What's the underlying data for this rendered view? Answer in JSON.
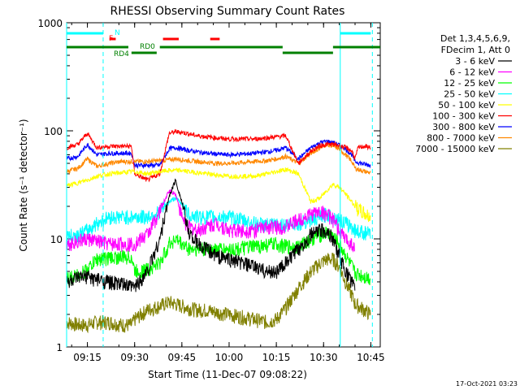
{
  "chart_data": {
    "type": "line",
    "title": "RHESSI Observing Summary Count Rates",
    "xlabel": "Start Time (11-Dec-07 09:08:22)",
    "ylabel": "Count Rate (s⁻¹ detector⁻¹)",
    "yscale": "log",
    "ylim": [
      1,
      1000
    ],
    "xlim_minutes_after_0900": [
      8.4,
      108
    ],
    "x_ticks": [
      {
        "label": "09:15",
        "minute": 15
      },
      {
        "label": "09:30",
        "minute": 30
      },
      {
        "label": "09:45",
        "minute": 45
      },
      {
        "label": "10:00",
        "minute": 60
      },
      {
        "label": "10:15",
        "minute": 75
      },
      {
        "label": "10:30",
        "minute": 90
      },
      {
        "label": "10:45",
        "minute": 105
      }
    ],
    "y_ticks": [
      {
        "label": "1",
        "value": 1
      },
      {
        "label": "10",
        "value": 10
      },
      {
        "label": "100",
        "value": 100
      },
      {
        "label": "1000",
        "value": 1000
      }
    ],
    "legend": {
      "placement": "right",
      "header": [
        "Det 1,3,4,5,6,9,",
        "FDecim 1, Att 0"
      ]
    },
    "series": [
      {
        "name": "3 - 6 keV",
        "color": "#000000",
        "x": [
          8.4,
          12,
          15,
          18,
          22,
          26,
          29,
          30,
          34,
          38,
          41,
          43,
          45,
          47,
          50,
          53,
          56,
          60,
          64,
          68,
          72,
          75,
          78,
          82,
          86,
          89,
          91,
          93,
          95,
          97,
          99,
          100
        ],
        "y": [
          4,
          4.3,
          4.5,
          4.2,
          4,
          3.8,
          3.6,
          3.6,
          5,
          10,
          25,
          35,
          22,
          12,
          9,
          8,
          7,
          6.5,
          6,
          5.5,
          5,
          5,
          6,
          8,
          11,
          12,
          12,
          10,
          7,
          5,
          4,
          3.5
        ]
      },
      {
        "name": "6 - 12 keV",
        "color": "#ff00ff",
        "x": [
          8.4,
          12,
          15,
          18,
          22,
          26,
          29,
          30,
          34,
          38,
          41,
          43,
          45,
          47,
          50,
          53,
          56,
          60,
          64,
          68,
          72,
          75,
          78,
          82,
          86,
          89,
          91,
          93,
          95,
          97,
          99,
          100
        ],
        "y": [
          9,
          9.5,
          10,
          9.5,
          9,
          9,
          9,
          9,
          11,
          18,
          28,
          26,
          16,
          13,
          12,
          13,
          14,
          12,
          12,
          12,
          13,
          13,
          13,
          15,
          17,
          18,
          17,
          15,
          12,
          10,
          9,
          8
        ]
      },
      {
        "name": "12 - 25 keV",
        "color": "#00ff00",
        "x": [
          8.4,
          12,
          15,
          18,
          22,
          26,
          29,
          30,
          34,
          38,
          41,
          43,
          45,
          47,
          50,
          53,
          56,
          60,
          64,
          68,
          72,
          75,
          78,
          82,
          86,
          89,
          91,
          93,
          95,
          97,
          99,
          100,
          103,
          105
        ],
        "y": [
          4.3,
          4.6,
          5.2,
          6.5,
          6.7,
          6.8,
          6.8,
          5,
          5.2,
          6,
          9,
          10,
          9,
          8.2,
          8,
          8,
          8,
          8,
          8.2,
          8.5,
          8.8,
          9,
          8.5,
          8.5,
          10,
          11,
          11.5,
          10.5,
          9,
          7,
          5.5,
          4.8,
          4.5,
          4.3
        ]
      },
      {
        "name": "25 - 50 keV",
        "color": "#00ffff",
        "x": [
          8.4,
          12,
          15,
          18,
          22,
          26,
          29,
          30,
          34,
          38,
          41,
          43,
          45,
          47,
          50,
          53,
          56,
          60,
          64,
          68,
          72,
          75,
          78,
          82,
          86,
          89,
          91,
          93,
          95,
          97,
          99,
          100,
          103,
          105
        ],
        "y": [
          10.5,
          11,
          12,
          14,
          16,
          16,
          16,
          16,
          16,
          18,
          22,
          24,
          21,
          17,
          16,
          16,
          16,
          16,
          15,
          14,
          13.5,
          13.5,
          13.5,
          14,
          15,
          16,
          17,
          16,
          15,
          14,
          13,
          12,
          11.5,
          11
        ]
      },
      {
        "name": "50 - 100 keV",
        "color": "#ffff00",
        "x": [
          8.4,
          12,
          15,
          18,
          22,
          26,
          29,
          30,
          34,
          38,
          41,
          43,
          45,
          47,
          50,
          53,
          56,
          60,
          64,
          68,
          72,
          75,
          78,
          82,
          86,
          89,
          91,
          93,
          95,
          97,
          99,
          100,
          103,
          105
        ],
        "y": [
          31,
          33,
          35,
          38,
          40,
          41,
          42,
          42,
          40,
          42,
          43,
          43,
          43,
          42,
          41,
          40,
          39,
          38,
          38,
          38,
          40,
          42,
          44,
          40,
          22,
          24,
          28,
          32,
          30,
          26,
          22,
          20,
          17,
          16
        ]
      },
      {
        "name": "100 - 300 keV",
        "color": "#ff0000",
        "x": [
          8.4,
          12,
          15,
          18,
          22,
          26,
          29,
          30,
          34,
          38,
          41,
          43,
          45,
          47,
          50,
          53,
          56,
          60,
          64,
          68,
          72,
          75,
          78,
          82,
          86,
          89,
          91,
          93,
          95,
          97,
          99,
          100,
          101,
          103,
          105
        ],
        "y": [
          70,
          75,
          95,
          70,
          72,
          72,
          72,
          40,
          35,
          40,
          95,
          98,
          97,
          94,
          90,
          88,
          86,
          84,
          84,
          84,
          86,
          88,
          90,
          50,
          65,
          73,
          75,
          75,
          73,
          70,
          65,
          55,
          70,
          72,
          70
        ]
      },
      {
        "name": "300 - 800 keV",
        "color": "#0000ff",
        "x": [
          8.4,
          12,
          15,
          18,
          22,
          26,
          29,
          30,
          34,
          38,
          41,
          43,
          45,
          47,
          50,
          53,
          56,
          60,
          64,
          68,
          72,
          75,
          78,
          82,
          86,
          89,
          91,
          93,
          95,
          97,
          99,
          100,
          103,
          105
        ],
        "y": [
          55,
          58,
          75,
          60,
          62,
          62,
          62,
          48,
          48,
          48,
          68,
          70,
          68,
          66,
          64,
          62,
          61,
          60,
          61,
          62,
          64,
          66,
          70,
          55,
          70,
          78,
          80,
          78,
          74,
          68,
          60,
          52,
          49,
          48
        ]
      },
      {
        "name": "800 - 7000 keV",
        "color": "#ff8800",
        "x": [
          8.4,
          12,
          15,
          18,
          22,
          26,
          29,
          30,
          34,
          38,
          41,
          43,
          45,
          47,
          50,
          53,
          56,
          60,
          64,
          68,
          72,
          75,
          78,
          82,
          86,
          89,
          91,
          93,
          95,
          97,
          99,
          100,
          103,
          105
        ],
        "y": [
          42,
          45,
          55,
          47,
          50,
          52,
          52,
          52,
          52,
          53,
          54,
          55,
          54,
          53,
          52,
          51,
          50,
          50,
          51,
          52,
          53,
          55,
          58,
          50,
          62,
          70,
          75,
          72,
          68,
          60,
          52,
          45,
          42,
          41
        ]
      },
      {
        "name": "7000 - 15000 keV",
        "color": "#808000",
        "x": [
          8.4,
          12,
          15,
          18,
          22,
          26,
          29,
          30,
          34,
          38,
          41,
          43,
          45,
          47,
          50,
          53,
          56,
          60,
          64,
          68,
          72,
          75,
          78,
          82,
          86,
          89,
          91,
          93,
          95,
          97,
          99,
          100,
          103,
          105
        ],
        "y": [
          1.7,
          1.6,
          1.6,
          1.7,
          1.7,
          1.6,
          1.6,
          1.8,
          2.2,
          2.4,
          2.6,
          2.5,
          2.4,
          2.3,
          2.2,
          2.2,
          2.1,
          2,
          1.9,
          1.8,
          1.7,
          1.8,
          2.3,
          3.5,
          5,
          6,
          6.5,
          6.5,
          5.5,
          4,
          3,
          2.5,
          2.2,
          2
        ]
      }
    ],
    "annotations": [
      {
        "label": "N",
        "color": "#00ffff"
      },
      {
        "label": "F",
        "color": "#ff0000"
      },
      {
        "label": "RD0",
        "color": "#008000"
      },
      {
        "label": "RD4",
        "color": "#008000"
      }
    ],
    "state_bars": [
      {
        "color": "#00ffff",
        "level": "N",
        "segments": [
          [
            8.4,
            20
          ],
          [
            95.3,
            105
          ]
        ]
      },
      {
        "color": "#ff0000",
        "level": "F",
        "segments": [
          [
            22,
            24
          ],
          [
            39,
            44
          ],
          [
            54,
            57
          ]
        ]
      },
      {
        "color": "#008000",
        "level": "RD0",
        "segments": [
          [
            8.4,
            28
          ],
          [
            38,
            77
          ],
          [
            93,
            104
          ],
          [
            104,
            108
          ]
        ]
      },
      {
        "color": "#008000",
        "level": "RD4",
        "segments": [
          [
            29,
            37
          ],
          [
            77,
            93
          ]
        ]
      }
    ],
    "vlines": [
      {
        "minute": 8.4,
        "color": "#00ffff",
        "style": "solid"
      },
      {
        "minute": 20,
        "color": "#00ffff",
        "style": "dashed"
      },
      {
        "minute": 95.3,
        "color": "#00ffff",
        "style": "solid"
      },
      {
        "minute": 105.5,
        "color": "#00ffff",
        "style": "dashed"
      }
    ],
    "footer": "17-Oct-2021 03:23"
  }
}
